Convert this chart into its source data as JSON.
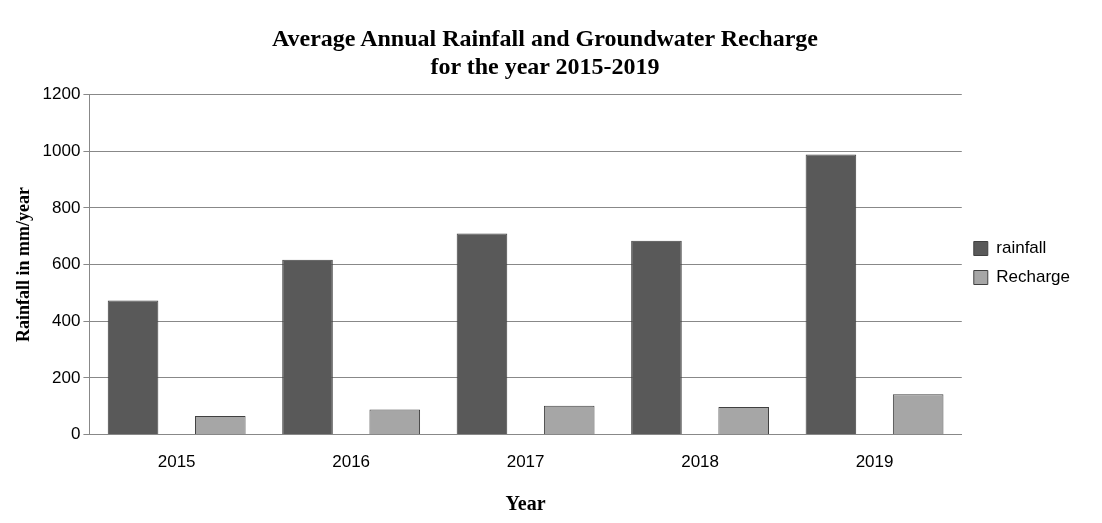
{
  "chart_data": {
    "type": "bar",
    "title": "Average Annual Rainfall and Groundwater Recharge\nfor the year 2015-2019",
    "xlabel": "Year",
    "ylabel": "Rainfall in mm/year",
    "categories": [
      "2015",
      "2016",
      "2017",
      "2018",
      "2019"
    ],
    "series": [
      {
        "name": "rainfall",
        "color": "#595959",
        "values": [
          473,
          617,
          710,
          684,
          989
        ]
      },
      {
        "name": "Recharge",
        "color": "#a6a6a6",
        "values": [
          66,
          89,
          102,
          97,
          142
        ]
      }
    ],
    "ylim": [
      0,
      1200
    ],
    "yticks": [
      0,
      200,
      400,
      600,
      800,
      1000,
      1200
    ],
    "grid": "y",
    "legend": "right"
  }
}
